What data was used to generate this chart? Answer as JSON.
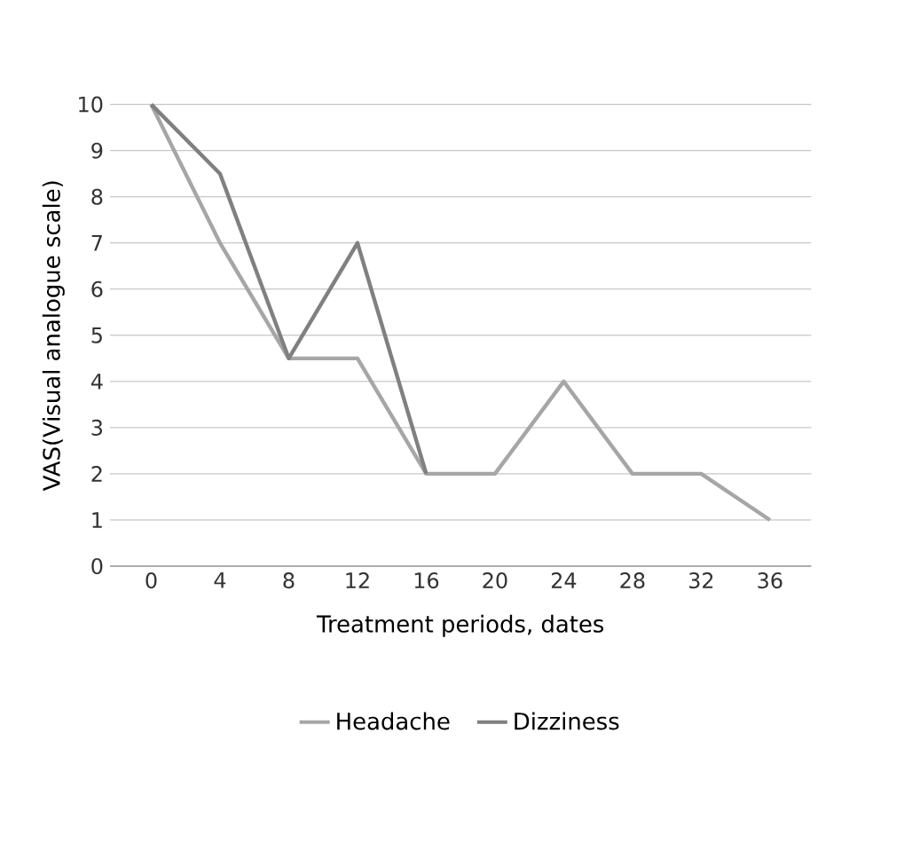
{
  "chart_data": {
    "type": "line",
    "xlabel": "Treatment periods, dates",
    "ylabel": "VAS(Visual analogue scale)",
    "categories": [
      "0",
      "4",
      "8",
      "12",
      "16",
      "20",
      "24",
      "28",
      "32",
      "36"
    ],
    "ylim": [
      0,
      10
    ],
    "yticks": [
      0,
      1,
      2,
      3,
      4,
      5,
      6,
      7,
      8,
      9,
      10
    ],
    "grid": "y",
    "legend": "bottom",
    "marker": "none",
    "series": [
      {
        "name": "Headache",
        "color": "#a6a6a6",
        "values": [
          10,
          7,
          4.5,
          4.5,
          2,
          2,
          4,
          2,
          2,
          1
        ]
      },
      {
        "name": "Dizziness",
        "color": "#808080",
        "values": [
          10,
          8.5,
          4.5,
          7,
          2,
          null,
          null,
          null,
          null,
          null
        ]
      }
    ]
  }
}
